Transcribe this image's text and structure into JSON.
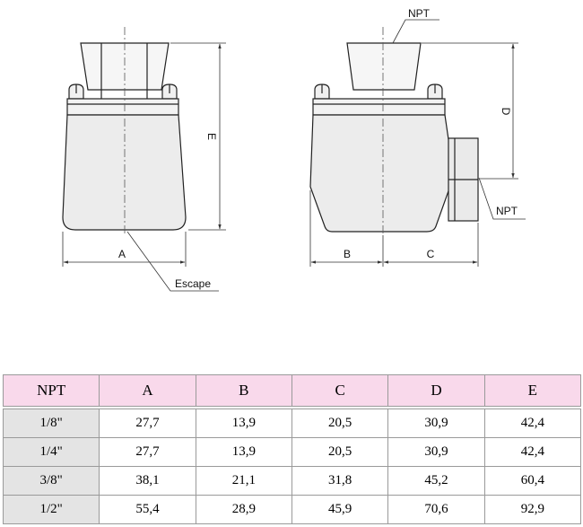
{
  "drawing": {
    "labels": {
      "npt_top": "NPT",
      "npt_side": "NPT",
      "escape": "Escape",
      "dim_a": "A",
      "dim_b": "B",
      "dim_c": "C",
      "dim_d": "D",
      "dim_e": "E"
    }
  },
  "table": {
    "headers": [
      "NPT",
      "A",
      "B",
      "C",
      "D",
      "E"
    ],
    "rows": [
      [
        "1/8\"",
        "27,7",
        "13,9",
        "20,5",
        "30,9",
        "42,4"
      ],
      [
        "1/4\"",
        "27,7",
        "13,9",
        "20,5",
        "30,9",
        "42,4"
      ],
      [
        "3/8\"",
        "38,1",
        "21,1",
        "31,8",
        "45,2",
        "60,4"
      ],
      [
        "1/2\"",
        "55,4",
        "28,9",
        "45,9",
        "70,6",
        "92,9"
      ]
    ]
  },
  "colors": {
    "header_bg": "#f9d9eb",
    "size_col_bg": "#e4e4e4",
    "body_fill": "#ececec"
  }
}
